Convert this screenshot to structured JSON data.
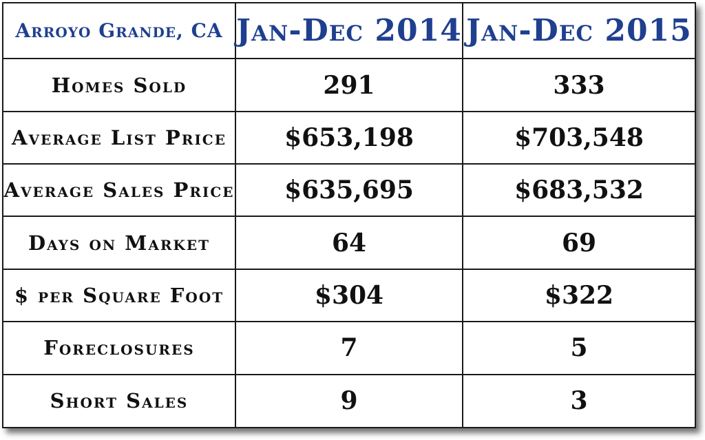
{
  "header": {
    "location": "Arroyo Grande, CA",
    "period_1": "Jan-Dec 2014",
    "period_2": "Jan-Dec 2015"
  },
  "colors": {
    "header_text": "#1f3f8f",
    "body_text": "#111111",
    "border": "#1a1a1a"
  },
  "rows": [
    {
      "label": "Homes Sold",
      "v2014": "291",
      "v2015": "333"
    },
    {
      "label": "Average List Price",
      "v2014": "$653,198",
      "v2015": "$703,548"
    },
    {
      "label": "Average Sales Price",
      "v2014": "$635,695",
      "v2015": "$683,532"
    },
    {
      "label": "Days on Market",
      "v2014": "64",
      "v2015": "69"
    },
    {
      "label": "$ per Square Foot",
      "v2014": "$304",
      "v2015": "$322"
    },
    {
      "label": "Foreclosures",
      "v2014": "7",
      "v2015": "5"
    },
    {
      "label": "Short Sales",
      "v2014": "9",
      "v2015": "3"
    }
  ]
}
